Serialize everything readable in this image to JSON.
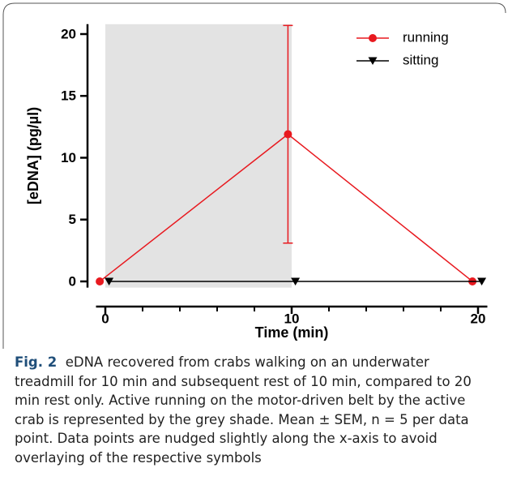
{
  "chart_data": {
    "type": "line",
    "xlabel": "Time (min)",
    "ylabel": "[eDNA] (pg/µl)",
    "xlim": [
      -0.5,
      20.5
    ],
    "ylim": [
      -0.5,
      20.8
    ],
    "xticks": [
      0,
      10,
      20
    ],
    "xminorticks": [
      2,
      4,
      6,
      8,
      12,
      14,
      16,
      18
    ],
    "yticks": [
      0,
      5,
      10,
      15,
      20
    ],
    "shade": {
      "x": [
        0,
        10
      ],
      "color": "#e3e3e3"
    },
    "legend": "upper right",
    "series": [
      {
        "name": "running",
        "color": "#e8191f",
        "marker": "circle",
        "x": [
          -0.3,
          9.8,
          19.7
        ],
        "values": [
          0,
          11.9,
          0
        ],
        "errors": [
          0,
          8.8,
          0
        ]
      },
      {
        "name": "sitting",
        "color": "#000000",
        "marker": "triangle-down",
        "x": [
          0.2,
          10.2,
          20.2
        ],
        "values": [
          0,
          0,
          0
        ]
      }
    ]
  },
  "caption": {
    "label": "Fig. 2",
    "text": "eDNA recovered from crabs walking on an underwater treadmill for 10 min and subsequent rest of 10 min, compared to 20 min rest only. Active running on the motor-driven belt by the active crab is represented by the grey shade. Mean ± SEM, n = 5 per data point. Data points are nudged slightly along the x-axis to avoid overlaying of the respective symbols"
  }
}
